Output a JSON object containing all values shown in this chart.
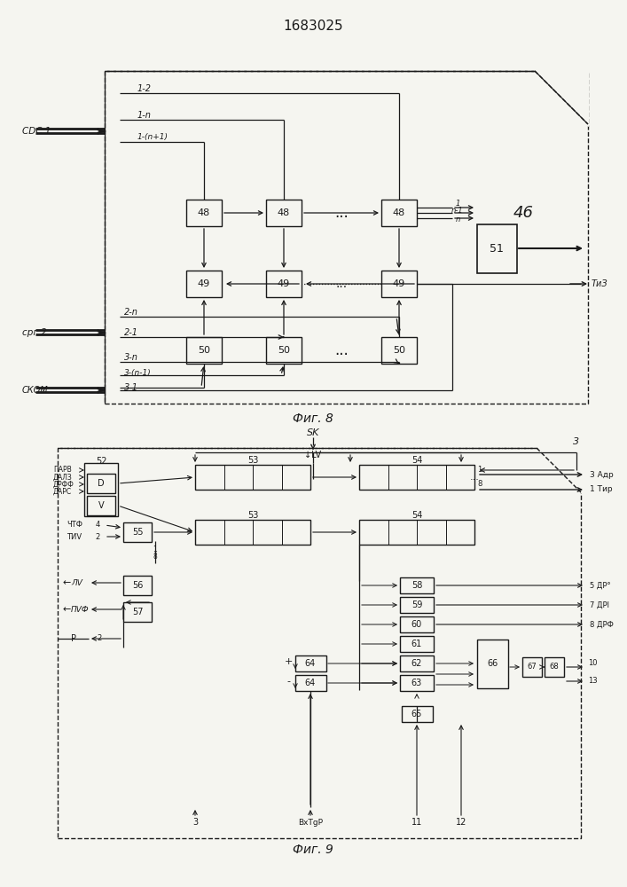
{
  "title": "1683025",
  "fig8_label": "Фиг. 8",
  "fig9_label": "Фиг. 9",
  "bg_color": "#f5f5f0",
  "line_color": "#1a1a1a",
  "box_color": "#f5f5f0",
  "text_color": "#1a1a1a"
}
